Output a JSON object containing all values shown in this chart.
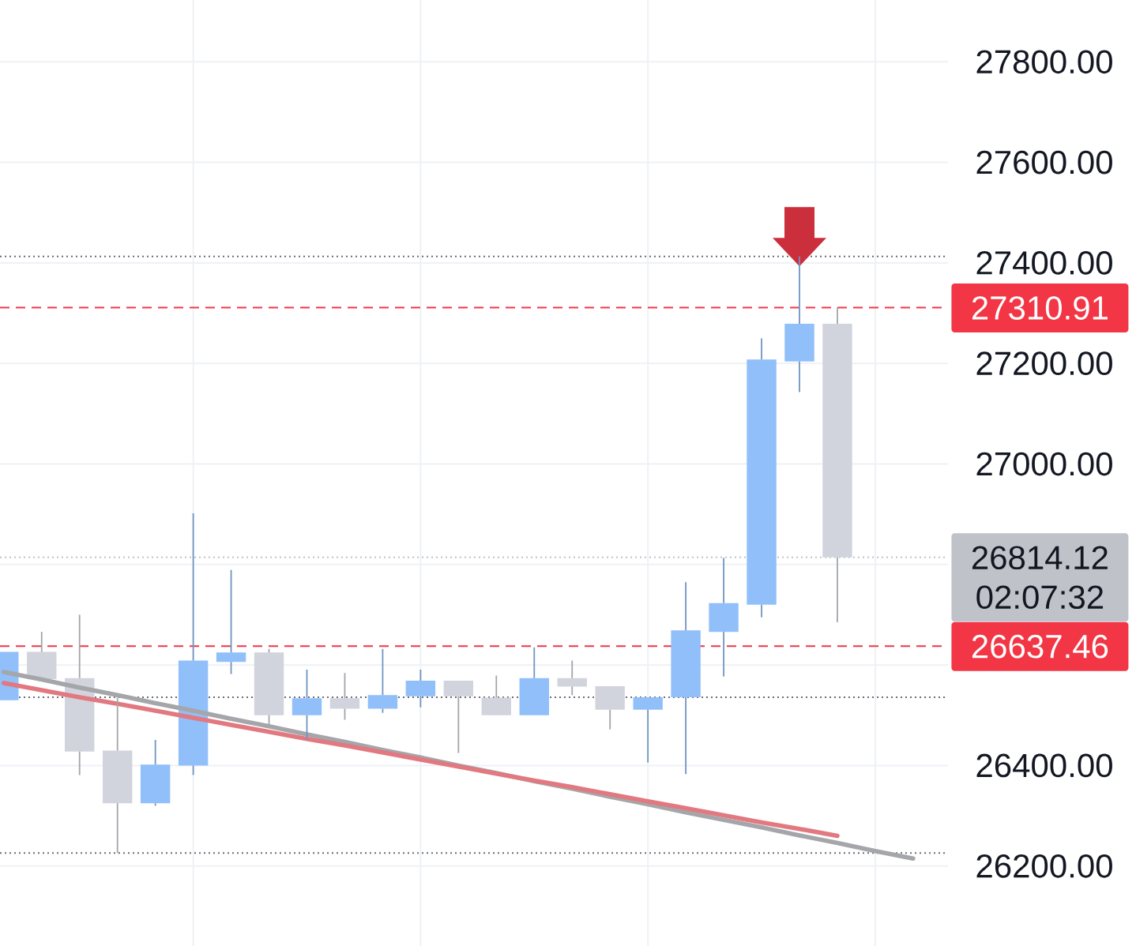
{
  "chart_data": {
    "type": "candlestick",
    "categories": [
      null,
      null,
      null,
      null,
      null,
      null,
      null,
      null,
      null,
      null,
      null,
      null,
      null,
      null,
      null,
      null,
      null,
      null,
      null,
      null,
      null,
      null,
      null,
      null,
      null
    ],
    "ohlc": [
      [
        26530,
        26626,
        26530,
        26626
      ],
      [
        26626,
        26666,
        26572,
        26572
      ],
      [
        26574,
        26700,
        26381,
        26428
      ],
      [
        26430,
        26535,
        26226,
        26325
      ],
      [
        26325,
        26451,
        26320,
        26402
      ],
      [
        26400,
        26902,
        26381,
        26609
      ],
      [
        26606,
        26789,
        26582,
        26625
      ],
      [
        26625,
        26632,
        26478,
        26500
      ],
      [
        26500,
        26591,
        26451,
        26534
      ],
      [
        26534,
        26584,
        26491,
        26513
      ],
      [
        26513,
        26632,
        26505,
        26540
      ],
      [
        26538,
        26591,
        26516,
        26569
      ],
      [
        26569,
        26569,
        26425,
        26538
      ],
      [
        26535,
        26579,
        26500,
        26500
      ],
      [
        26500,
        26635,
        26500,
        26574
      ],
      [
        26574,
        26609,
        26540,
        26557
      ],
      [
        26558,
        26558,
        26472,
        26511
      ],
      [
        26511,
        26536,
        26406,
        26536
      ],
      [
        26536,
        26765,
        26383,
        26669
      ],
      [
        26666,
        26813,
        26577,
        26723
      ],
      [
        26720,
        27250,
        26695,
        27208
      ],
      [
        27204,
        27413,
        27143,
        27279
      ],
      [
        27279,
        27311,
        26685,
        26814.12
      ],
      null,
      null
    ],
    "colors": [
      "#90bff9",
      "#d1d4dc",
      "#d1d4dc",
      "#d1d4dc",
      "#90bff9",
      "#90bff9",
      "#90bff9",
      "#d1d4dc",
      "#90bff9",
      "#d1d4dc",
      "#90bff9",
      "#90bff9",
      "#d1d4dc",
      "#d1d4dc",
      "#90bff9",
      "#d1d4dc",
      "#d1d4dc",
      "#90bff9",
      "#90bff9",
      "#90bff9",
      "#90bff9",
      "#90bff9",
      "#d1d4dc",
      null,
      null
    ],
    "series": [
      {
        "type": "line",
        "color": "#a5a6aa",
        "values": [
          26586,
          26571,
          26555,
          26540,
          26524,
          26509,
          26493,
          26478,
          26462,
          26447,
          26431,
          26416,
          26400,
          26385,
          26369,
          26354,
          26338,
          26323,
          26307,
          26292,
          26277,
          26261,
          26246,
          26230,
          26215
        ]
      },
      {
        "type": "line",
        "color": "#e27880",
        "values": [
          26564,
          26550,
          26536,
          26523,
          26509,
          26495,
          26481,
          26467,
          26453,
          26440,
          26426,
          26412,
          26398,
          26384,
          26370,
          26357,
          26343,
          26329,
          26315,
          26301,
          26287,
          26274,
          26260,
          null,
          null
        ]
      },
      {
        "type": "scatter",
        "color": "#cc2f3c",
        "marker": "triangle",
        "values": [
          null,
          null,
          null,
          null,
          null,
          null,
          null,
          null,
          null,
          null,
          null,
          null,
          null,
          null,
          null,
          null,
          null,
          null,
          null,
          null,
          null,
          27452,
          null,
          null,
          null
        ]
      }
    ],
    "ylim": [
      26041,
      27923
    ],
    "yticks": [
      {
        "value": 26200,
        "label": "26200.00"
      },
      {
        "value": 26400,
        "label": "26400.00"
      },
      {
        "value": 26600,
        "label": null
      },
      {
        "value": 26800,
        "label": null
      },
      {
        "value": 27000,
        "label": "27000.00"
      },
      {
        "value": 27200,
        "label": "27200.00"
      },
      {
        "value": 27400,
        "label": "27400.00"
      },
      {
        "value": 27600,
        "label": "27600.00"
      },
      {
        "value": 27800,
        "label": "27800.00"
      }
    ],
    "grid": true,
    "tick_labels": "y",
    "ref_lines": [
      {
        "axis": "y",
        "value": 27413,
        "color": "#6a6d78",
        "line_style": "dotted"
      },
      {
        "axis": "y",
        "value": 26536,
        "color": "#6a6d78",
        "line_style": "dotted"
      },
      {
        "axis": "y",
        "value": 26226,
        "color": "#6a6d78",
        "line_style": "dotted"
      },
      {
        "axis": "y",
        "value": 27310.91,
        "label": "27310.91",
        "color": "#f23645",
        "line_style": "dashed"
      },
      {
        "axis": "y",
        "value": 26637.46,
        "label": "26637.46",
        "color": "#f23645",
        "line_style": "dashed"
      },
      {
        "axis": "y",
        "value": 26814.12,
        "label": "26814.12",
        "color": "#bfc2c9",
        "line_style": "dotted"
      }
    ],
    "annotations": [
      "02:07:32"
    ]
  }
}
